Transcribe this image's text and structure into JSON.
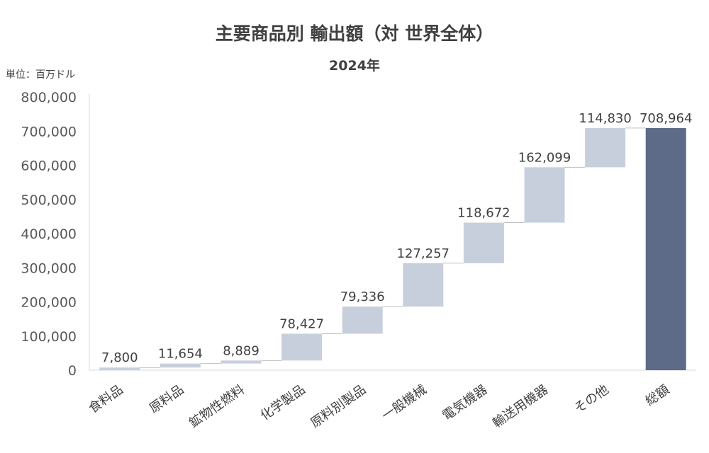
{
  "chart_data": {
    "type": "bar",
    "subtype": "waterfall",
    "title": "主要商品別 輸出額（対 世界全体）",
    "subtitle": "2024年",
    "unit_label": "単位：百万ドル",
    "categories": [
      "食料品",
      "原料品",
      "鉱物性燃料",
      "化学製品",
      "原料別製品",
      "一般機械",
      "電気機器",
      "輸送用機器",
      "その他",
      "総額"
    ],
    "values": [
      7800,
      11654,
      8889,
      78427,
      79336,
      127257,
      118672,
      162099,
      114830,
      708964
    ],
    "value_labels": [
      "7,800",
      "11,654",
      "8,889",
      "78,427",
      "79,336",
      "127,257",
      "118,672",
      "162,099",
      "114,830",
      "708,964"
    ],
    "total_index": 9,
    "ylim": [
      0,
      800000
    ],
    "yticks": [
      0,
      100000,
      200000,
      300000,
      400000,
      500000,
      600000,
      700000,
      800000
    ],
    "ytick_labels": [
      "0",
      "100,000",
      "200,000",
      "300,000",
      "400,000",
      "500,000",
      "600,000",
      "700,000",
      "800,000"
    ],
    "xlabel": "",
    "ylabel": "",
    "grid": false,
    "legend": "none",
    "colors": {
      "increment": "#c8cfdc",
      "total": "#5d6b88",
      "axis": "#d9d9d9",
      "connector": "#bfbfbf"
    }
  }
}
